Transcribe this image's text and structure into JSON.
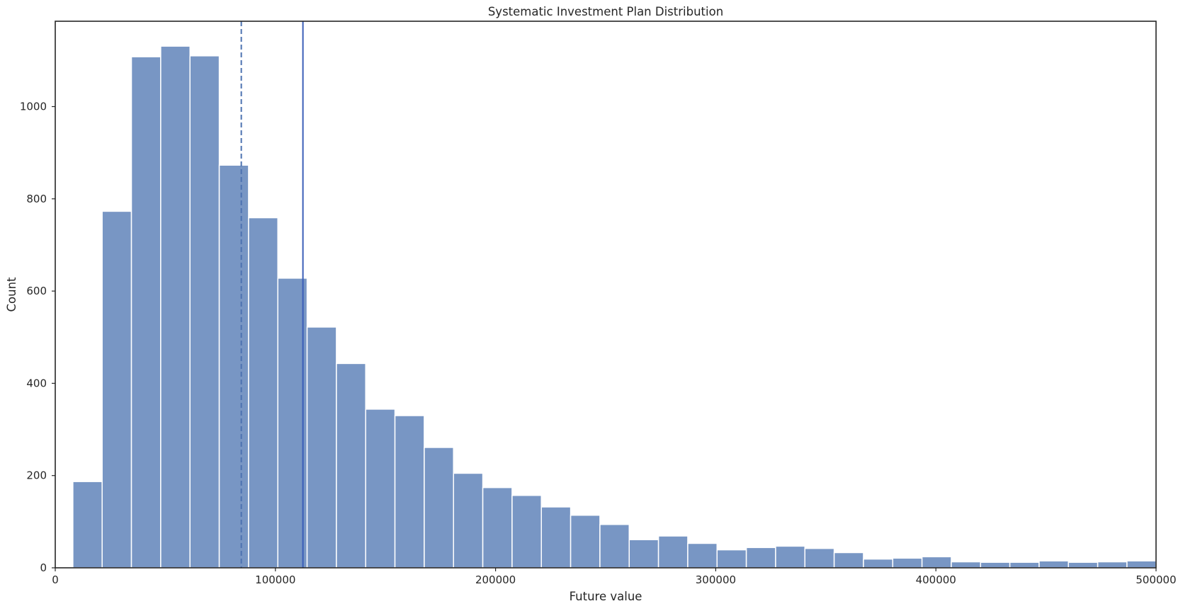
{
  "chart_data": {
    "type": "bar",
    "title": "Systematic Investment Plan Distribution",
    "xlabel": "Future value",
    "ylabel": "Count",
    "xlim": [
      0,
      500000
    ],
    "ylim": [
      0,
      1185
    ],
    "grid": false,
    "legend": "none",
    "x_ticks": [
      {
        "value": 0,
        "label": "0"
      },
      {
        "value": 100000,
        "label": "100000"
      },
      {
        "value": 200000,
        "label": "200000"
      },
      {
        "value": 300000,
        "label": "300000"
      },
      {
        "value": 400000,
        "label": "400000"
      },
      {
        "value": 500000,
        "label": "500000"
      }
    ],
    "y_ticks": [
      {
        "value": 0,
        "label": "0"
      },
      {
        "value": 200,
        "label": "200"
      },
      {
        "value": 400,
        "label": "400"
      },
      {
        "value": 600,
        "label": "600"
      },
      {
        "value": 800,
        "label": "800"
      },
      {
        "value": 1000,
        "label": "1000"
      }
    ],
    "bin_start": 8000,
    "bin_width": 13300,
    "counts": [
      187,
      773,
      1108,
      1131,
      1110,
      873,
      759,
      628,
      522,
      443,
      344,
      330,
      261,
      205,
      174,
      157,
      132,
      114,
      94,
      61,
      69,
      53,
      39,
      44,
      47,
      42,
      33,
      19,
      21,
      24,
      13,
      12,
      12,
      15,
      12,
      13,
      15
    ],
    "vlines": [
      {
        "value": 84500,
        "style": "dashed",
        "color": "#4c72b0"
      },
      {
        "value": 112500,
        "style": "solid",
        "color": "#3b5fb8"
      }
    ],
    "colors": {
      "bar": "#7896c4",
      "bar_edge": "#ffffff",
      "frame": "#262626"
    }
  }
}
